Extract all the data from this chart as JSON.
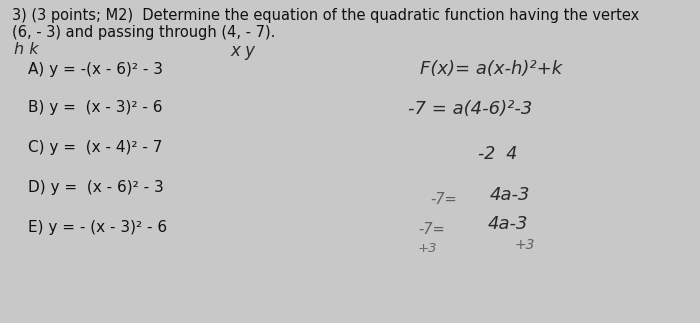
{
  "background_color": "#c8c8c8",
  "title_line1": "3) (3 points; M2)  Determine the equation of the quadratic function having the vertex",
  "title_line2": "(6, - 3) and passing through (4, - 7).",
  "hk_text": "h k",
  "xy_text": "x y",
  "options_A": "A) y = -(x - 6)² - 3",
  "options_B": "B) y =  (x - 3)² - 6",
  "options_C": "C) y =  (x - 4)² - 7",
  "options_D": "D) y =  (x - 6)² - 3",
  "options_E": "E) y = - (x - 3)² - 6",
  "rhs1": "F(x)= a(x-h)²+k",
  "rhs2": "-7 = a(4-6)²-3",
  "rhs3": "-2  4",
  "rhs4_left": "-7=",
  "rhs4_right": "4a-3",
  "rhs5_left": "-7=",
  "rhs5_bot_left": "+3",
  "rhs5_right": "4a-3",
  "rhs5_bot_right": "+3",
  "text_color": "#111111",
  "hand_color": "#2a2a2a"
}
